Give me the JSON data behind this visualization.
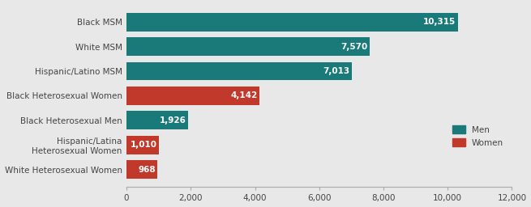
{
  "categories": [
    "White Heterosexual Women",
    "Hispanic/Latina\nHeterosexual Women",
    "Black Heterosexual Men",
    "Black Heterosexual Women",
    "Hispanic/Latino MSM",
    "White MSM",
    "Black MSM"
  ],
  "values": [
    968,
    1010,
    1926,
    4142,
    7013,
    7570,
    10315
  ],
  "colors": [
    "#c0392b",
    "#c0392b",
    "#1a7a7a",
    "#c0392b",
    "#1a7a7a",
    "#1a7a7a",
    "#1a7a7a"
  ],
  "bar_labels": [
    "968",
    "1,010",
    "1,926",
    "4,142",
    "7,013",
    "7,570",
    "10,315"
  ],
  "xlim": [
    0,
    12000
  ],
  "xticks": [
    0,
    2000,
    4000,
    6000,
    8000,
    10000,
    12000
  ],
  "xtick_labels": [
    "0",
    "2,000",
    "4,000",
    "6,000",
    "8,000",
    "10,000",
    "12,000"
  ],
  "men_color": "#1a7a7a",
  "women_color": "#c0392b",
  "background_color": "#e8e8e8",
  "legend_men": "Men",
  "legend_women": "Women",
  "bar_height": 0.75,
  "label_fontsize": 7.5,
  "tick_fontsize": 7.5,
  "category_fontsize": 7.5
}
